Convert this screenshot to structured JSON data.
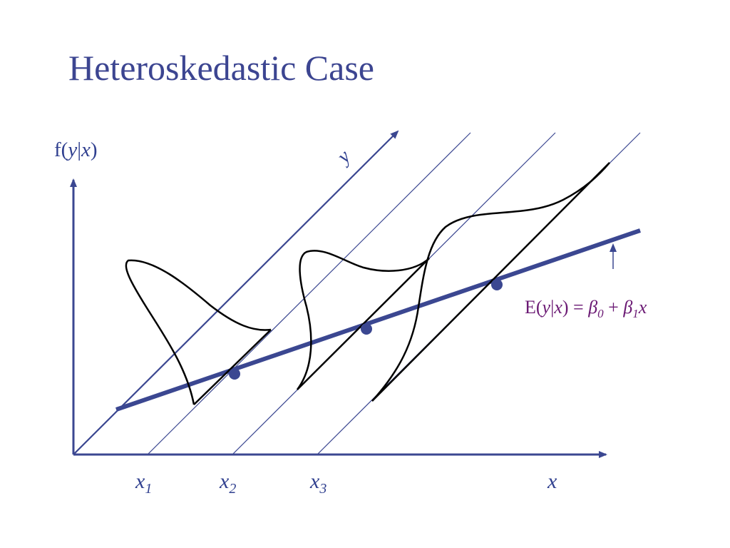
{
  "slide": {
    "title": "Heteroskedastic Case"
  },
  "diagram": {
    "vertical_axis_label": {
      "f": "f(",
      "y": "y",
      "bar": "|",
      "x": "x",
      "close": ")"
    },
    "depth_axis_label": "y",
    "horizontal_axis_label": "x",
    "x_ticks": [
      {
        "base": "x",
        "sub": "1"
      },
      {
        "base": "x",
        "sub": "2"
      },
      {
        "base": "x",
        "sub": "3"
      }
    ],
    "regression_equation": {
      "lhs": "E(",
      "y": "y",
      "bar": "|",
      "x": "x",
      "close": ") = ",
      "beta": "β",
      "sub0": "0",
      "plus": " + ",
      "sub1": "1",
      "tail_x": "x"
    },
    "colors": {
      "axis": "#3b4791",
      "regression_line": "#3b4791",
      "density_curve": "#000000",
      "title": "#3c4591",
      "equation": "#6b1a74"
    }
  }
}
